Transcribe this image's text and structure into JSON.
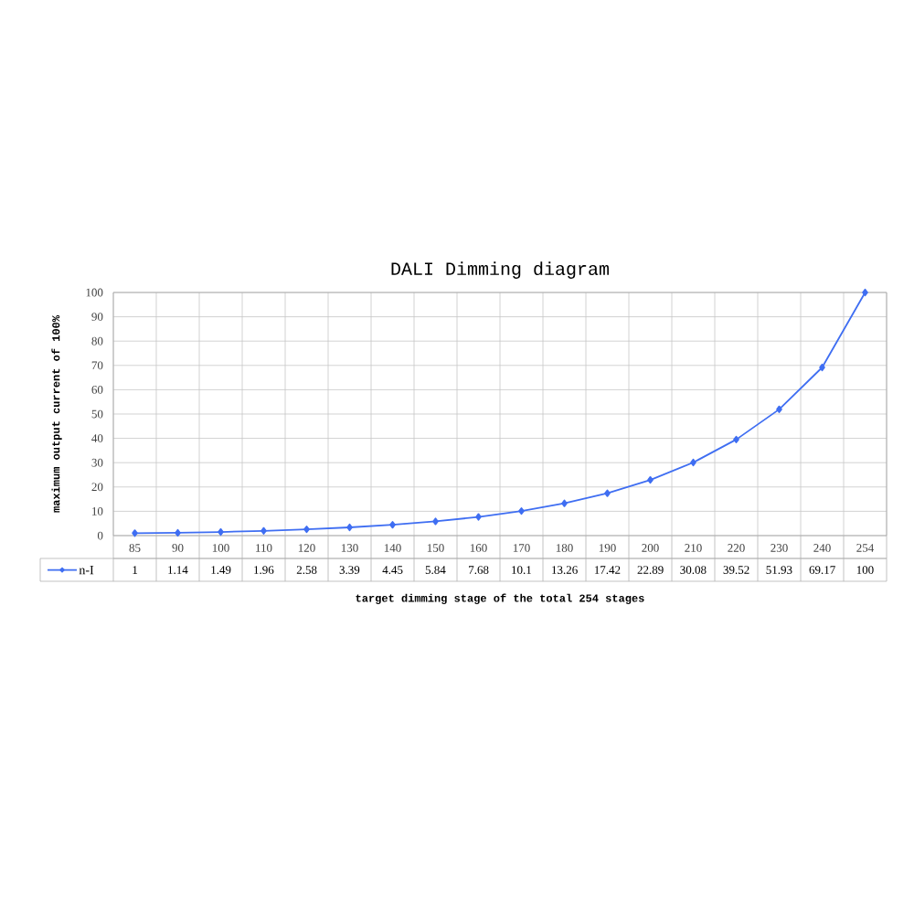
{
  "chart_data": {
    "type": "line",
    "title": "DALI Dimming diagram",
    "xlabel": "target dimming stage of the total 254 stages",
    "ylabel": "maximum output current of 100%",
    "categories": [
      "85",
      "90",
      "100",
      "110",
      "120",
      "130",
      "140",
      "150",
      "160",
      "170",
      "180",
      "190",
      "200",
      "210",
      "220",
      "230",
      "240",
      "254"
    ],
    "series": [
      {
        "name": "n-I",
        "color": "#3f6ef2",
        "values": [
          1,
          1.14,
          1.49,
          1.96,
          2.58,
          3.39,
          4.45,
          5.84,
          7.68,
          10.1,
          13.26,
          17.42,
          22.89,
          30.08,
          39.52,
          51.93,
          69.17,
          100
        ]
      }
    ],
    "ylim": [
      0,
      100
    ],
    "yticks": [
      0,
      10,
      20,
      30,
      40,
      50,
      60,
      70,
      80,
      90,
      100
    ],
    "grid": true,
    "marker": "diamond",
    "line_style": "solid",
    "legend": "bottom left",
    "data_labels": true
  }
}
